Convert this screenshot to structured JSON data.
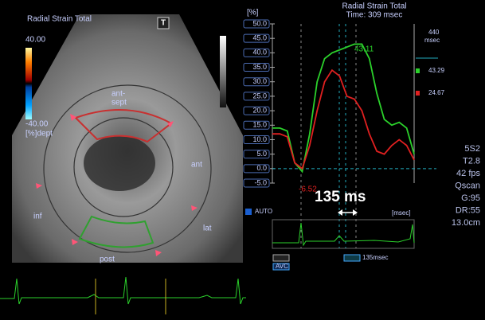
{
  "left_panel": {
    "title": "Radial Strain Total",
    "scale_max": "40.00",
    "scale_min": "-40.00",
    "scale_unit": "[%]dept",
    "button": "T",
    "segment_labels": [
      "ant-",
      "sept",
      "ant",
      "lat",
      "post",
      "inf"
    ]
  },
  "chart_data": {
    "type": "line",
    "title": "Radial Strain Total",
    "subtitle": "Time: 309 msec",
    "y_unit": "[%]",
    "x_unit": "[msec]",
    "ylim": [
      -5,
      50
    ],
    "yticks": [
      {
        "value": 50,
        "label": "50.0"
      },
      {
        "value": 45,
        "label": "45.0"
      },
      {
        "value": 40,
        "label": "40.0"
      },
      {
        "value": 35,
        "label": "35.0"
      },
      {
        "value": 30,
        "label": "30.0"
      },
      {
        "value": 25,
        "label": "25.0"
      },
      {
        "value": 20,
        "label": "20.0"
      },
      {
        "value": 15,
        "label": "15.0"
      },
      {
        "value": 10,
        "label": "10.0"
      },
      {
        "value": 5,
        "label": "5.0"
      },
      {
        "value": 0,
        "label": "0.0"
      },
      {
        "value": -5,
        "label": "-5.0"
      }
    ],
    "series": [
      {
        "color": "#2bd12b",
        "values": [
          14,
          14,
          13,
          2,
          -1,
          12,
          30,
          38,
          40,
          41,
          42,
          43,
          43,
          38,
          26,
          17,
          15,
          16,
          14,
          5
        ]
      },
      {
        "color": "#e02020",
        "values": [
          12,
          12,
          11,
          2,
          0,
          8,
          20,
          30,
          34,
          32,
          25,
          24,
          20,
          12,
          6,
          5,
          8,
          10,
          8,
          3
        ]
      }
    ],
    "annotations": [
      "43.11",
      "-6.52"
    ]
  },
  "readouts": {
    "time": "440",
    "time_unit": "msec",
    "values": [
      "43.29",
      "24.67"
    ]
  },
  "controls": {
    "auto": "AUTO",
    "measure": "135 ms",
    "interval": "135msec",
    "avc": "AVC"
  },
  "settings": [
    "5S2",
    "T2.8",
    "42 fps",
    "Qscan",
    "G:95",
    "DR:55",
    "13.0cm"
  ]
}
